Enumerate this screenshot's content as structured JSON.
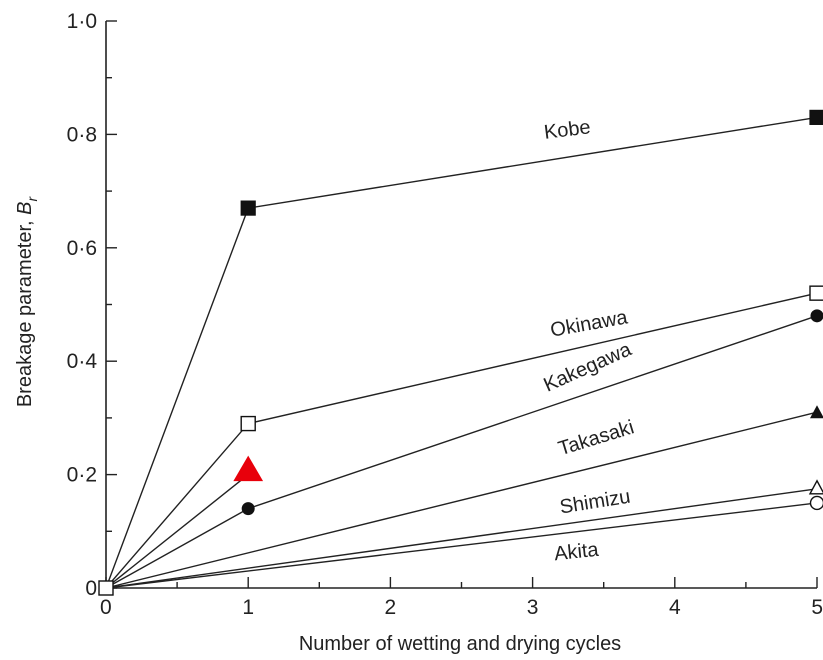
{
  "chart_data": {
    "type": "line",
    "xlabel": "Number of wetting and drying cycles",
    "ylabel_main": "Breakage parameter, ",
    "ylabel_symbol": "B",
    "ylabel_subscript": "r",
    "xlim": [
      0,
      5
    ],
    "ylim": [
      0,
      1.0
    ],
    "x_ticks": [
      0,
      1,
      2,
      3,
      4,
      5
    ],
    "x_tick_labels": [
      "0",
      "1",
      "2",
      "3",
      "4",
      "5"
    ],
    "y_ticks": [
      0,
      0.2,
      0.4,
      0.6,
      0.8,
      1.0
    ],
    "y_tick_labels": [
      "0",
      "0·2",
      "0·4",
      "0·6",
      "0·8",
      "1·0"
    ],
    "series": [
      {
        "name": "Kobe",
        "marker": "square-filled",
        "x": [
          0,
          1,
          5
        ],
        "y": [
          0,
          0.67,
          0.83
        ]
      },
      {
        "name": "Okinawa",
        "marker": "square-open",
        "x": [
          0,
          1,
          5
        ],
        "y": [
          0,
          0.29,
          0.52
        ]
      },
      {
        "name": "Kakegawa",
        "marker": "circle-filled",
        "x": [
          0,
          1,
          5
        ],
        "y": [
          0,
          0.14,
          0.48
        ]
      },
      {
        "name": "Takasaki",
        "marker": "triangle-filled",
        "x": [
          0,
          5
        ],
        "y": [
          0,
          0.31
        ]
      },
      {
        "name": "Shimizu",
        "marker": "triangle-open",
        "x": [
          0,
          5
        ],
        "y": [
          0,
          0.175
        ]
      },
      {
        "name": "Akita",
        "marker": "circle-open",
        "x": [
          0,
          5
        ],
        "y": [
          0,
          0.15
        ]
      },
      {
        "name": "",
        "marker": "triangle-red",
        "color": "#e8000b",
        "x": [
          0,
          1
        ],
        "y": [
          0,
          0.2
        ]
      }
    ],
    "grid": false,
    "legend": "inline labels"
  }
}
